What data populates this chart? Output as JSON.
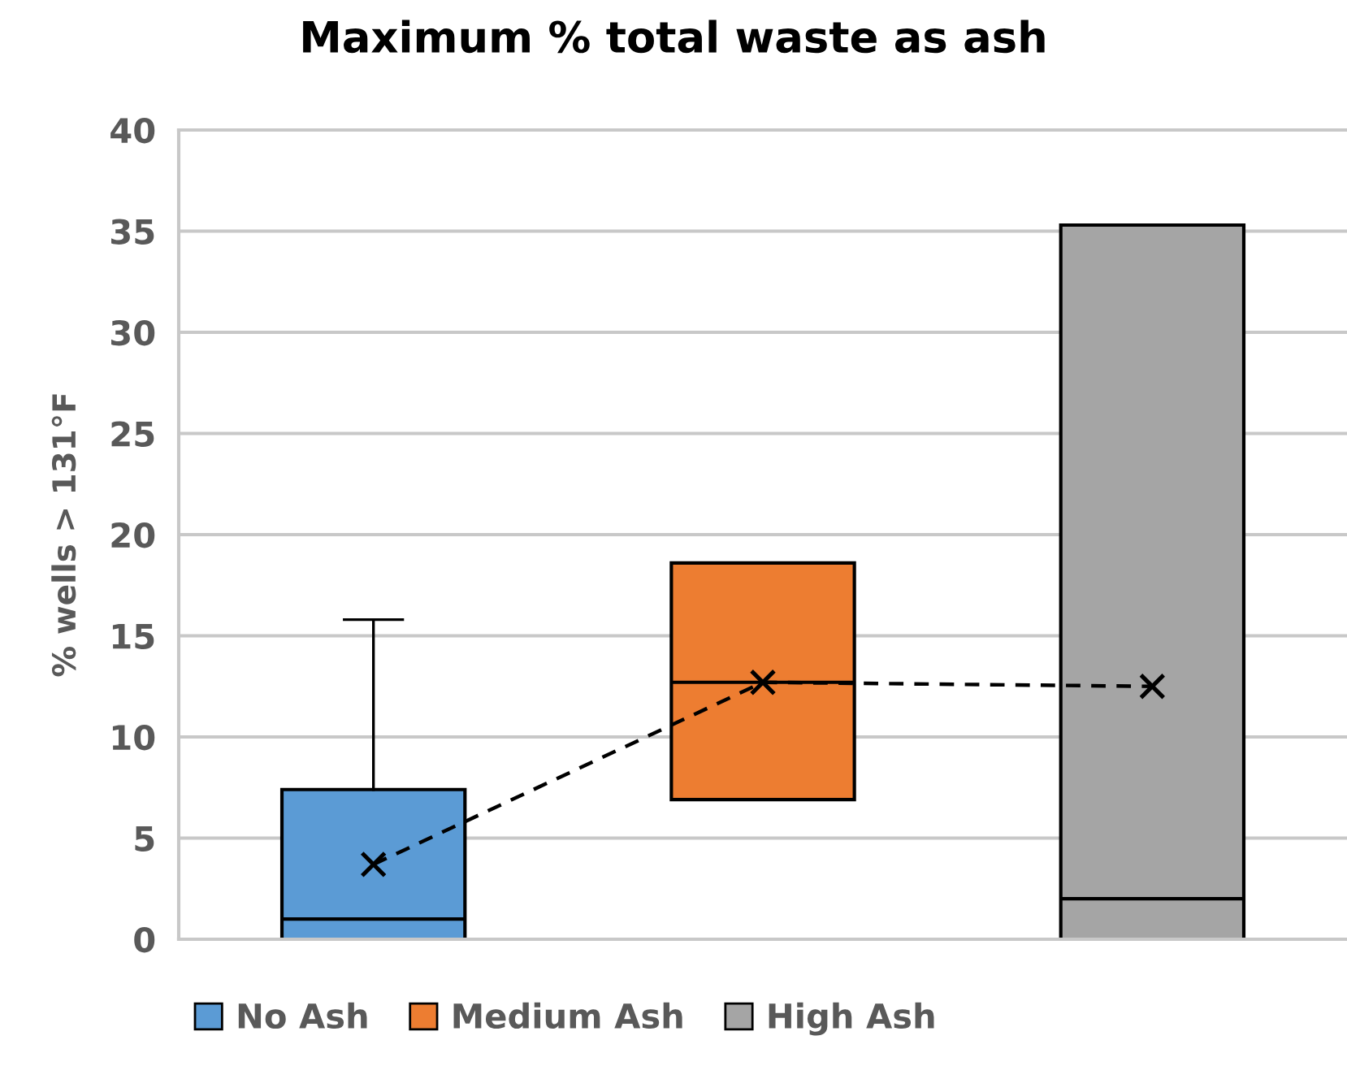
{
  "chart_data": {
    "type": "box",
    "title": "Maximum % total waste as ash",
    "ylabel": "% wells > 131°F",
    "categories": [
      null,
      null,
      null
    ],
    "series": [
      {
        "name": "No Ash",
        "color": "#5b9bd5",
        "boxes": [
          {
            "low": 0,
            "q1": 0,
            "median": 1,
            "q3": 7.4,
            "high": 15.8,
            "mean": 3.7
          },
          null,
          null
        ]
      },
      {
        "name": "Medium Ash",
        "color": "#ed7d31",
        "boxes": [
          null,
          {
            "low": 6.9,
            "q1": 6.9,
            "median": 12.7,
            "q3": 18.6,
            "high": 18.6,
            "mean": 12.7
          },
          null
        ]
      },
      {
        "name": "High Ash",
        "color": "#a5a5a5",
        "boxes": [
          null,
          null,
          {
            "low": 0,
            "q1": 0,
            "median": 2,
            "q3": 35.3,
            "high": 35.3,
            "mean": 12.5
          }
        ]
      },
      {
        "type": "line",
        "color": "#000000",
        "line_style": "dashed",
        "marker": "none",
        "values": [
          3.7,
          12.7,
          12.5
        ]
      }
    ],
    "ylim": [
      0,
      40
    ],
    "yticks": [
      0,
      5,
      10,
      15,
      20,
      25,
      30,
      35,
      40
    ],
    "grid": "y",
    "legend": "bottom"
  }
}
